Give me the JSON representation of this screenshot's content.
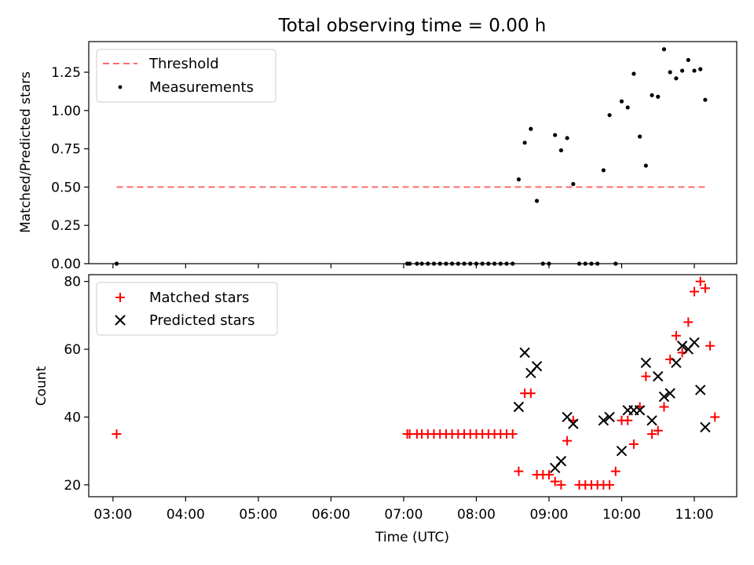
{
  "title": "Total observing time = 0.00 h",
  "xlabel": "Time (UTC)",
  "x_ticks": [
    "03:00",
    "04:00",
    "05:00",
    "06:00",
    "07:00",
    "08:00",
    "09:00",
    "10:00",
    "11:00"
  ],
  "colors": {
    "threshold": "#ff6b6b",
    "measurements": "#000000",
    "matched": "#ff0000",
    "predicted": "#000000"
  },
  "chart_data": [
    {
      "type": "scatter",
      "title": "Total observing time = 0.00 h",
      "ylabel": "Matched/Predicted stars",
      "xlim": [
        "02:40",
        "11:35"
      ],
      "ylim": [
        0,
        1.45
      ],
      "y_ticks": [
        "0.00",
        "0.25",
        "0.50",
        "0.75",
        "1.00",
        "1.25"
      ],
      "legend": "upper-left",
      "threshold": {
        "name": "Threshold",
        "y": 0.5,
        "x_range": [
          "03:03",
          "11:09"
        ]
      },
      "series": [
        {
          "name": "Measurements",
          "points": [
            [
              "03:03",
              0
            ],
            [
              "07:03",
              0
            ],
            [
              "07:05",
              0
            ],
            [
              "07:11",
              0
            ],
            [
              "07:15",
              0
            ],
            [
              "07:20",
              0
            ],
            [
              "07:25",
              0
            ],
            [
              "07:30",
              0
            ],
            [
              "07:35",
              0
            ],
            [
              "07:40",
              0
            ],
            [
              "07:45",
              0
            ],
            [
              "07:50",
              0
            ],
            [
              "07:55",
              0
            ],
            [
              "08:00",
              0
            ],
            [
              "08:05",
              0
            ],
            [
              "08:10",
              0
            ],
            [
              "08:15",
              0
            ],
            [
              "08:20",
              0
            ],
            [
              "08:25",
              0
            ],
            [
              "08:30",
              0
            ],
            [
              "08:35",
              0.55
            ],
            [
              "08:40",
              0.79
            ],
            [
              "08:45",
              0.88
            ],
            [
              "08:50",
              0.41
            ],
            [
              "08:55",
              0
            ],
            [
              "09:00",
              0
            ],
            [
              "09:05",
              0.84
            ],
            [
              "09:10",
              0.74
            ],
            [
              "09:15",
              0.82
            ],
            [
              "09:20",
              0.52
            ],
            [
              "09:25",
              0
            ],
            [
              "09:30",
              0
            ],
            [
              "09:35",
              0
            ],
            [
              "09:40",
              0
            ],
            [
              "09:45",
              0.61
            ],
            [
              "09:50",
              0.97
            ],
            [
              "09:55",
              0
            ],
            [
              "10:00",
              1.06
            ],
            [
              "10:05",
              1.02
            ],
            [
              "10:10",
              1.24
            ],
            [
              "10:15",
              0.83
            ],
            [
              "10:20",
              0.64
            ],
            [
              "10:25",
              1.1
            ],
            [
              "10:30",
              1.09
            ],
            [
              "10:35",
              1.4
            ],
            [
              "10:40",
              1.25
            ],
            [
              "10:45",
              1.21
            ],
            [
              "10:50",
              1.26
            ],
            [
              "10:55",
              1.33
            ],
            [
              "11:00",
              1.26
            ],
            [
              "11:05",
              1.27
            ],
            [
              "11:09",
              1.07
            ]
          ]
        }
      ]
    },
    {
      "type": "scatter",
      "ylabel": "Count",
      "xlabel": "Time (UTC)",
      "xlim": [
        "02:40",
        "11:35"
      ],
      "ylim": [
        16.5,
        82
      ],
      "y_ticks": [
        "20",
        "40",
        "60",
        "80"
      ],
      "legend": "upper-left",
      "series": [
        {
          "name": "Matched stars",
          "marker": "plus",
          "points": [
            [
              "03:03",
              35
            ],
            [
              "07:03",
              35
            ],
            [
              "07:05",
              35
            ],
            [
              "07:11",
              35
            ],
            [
              "07:15",
              35
            ],
            [
              "07:20",
              35
            ],
            [
              "07:25",
              35
            ],
            [
              "07:30",
              35
            ],
            [
              "07:35",
              35
            ],
            [
              "07:40",
              35
            ],
            [
              "07:45",
              35
            ],
            [
              "07:50",
              35
            ],
            [
              "07:55",
              35
            ],
            [
              "08:00",
              35
            ],
            [
              "08:05",
              35
            ],
            [
              "08:10",
              35
            ],
            [
              "08:15",
              35
            ],
            [
              "08:20",
              35
            ],
            [
              "08:25",
              35
            ],
            [
              "08:30",
              35
            ],
            [
              "08:35",
              24
            ],
            [
              "08:40",
              47
            ],
            [
              "08:45",
              47
            ],
            [
              "08:50",
              23
            ],
            [
              "08:55",
              23
            ],
            [
              "09:00",
              23
            ],
            [
              "09:05",
              21
            ],
            [
              "09:10",
              20
            ],
            [
              "09:15",
              33
            ],
            [
              "09:20",
              39
            ],
            [
              "09:25",
              20
            ],
            [
              "09:30",
              20
            ],
            [
              "09:35",
              20
            ],
            [
              "09:40",
              20
            ],
            [
              "09:45",
              20
            ],
            [
              "09:50",
              20
            ],
            [
              "09:55",
              24
            ],
            [
              "10:00",
              39
            ],
            [
              "10:05",
              39
            ],
            [
              "10:10",
              32
            ],
            [
              "10:15",
              43
            ],
            [
              "10:20",
              52
            ],
            [
              "10:25",
              35
            ],
            [
              "10:30",
              36
            ],
            [
              "10:35",
              43
            ],
            [
              "10:40",
              57
            ],
            [
              "10:45",
              64
            ],
            [
              "10:50",
              59
            ],
            [
              "10:55",
              68
            ],
            [
              "11:00",
              77
            ],
            [
              "11:05",
              80
            ],
            [
              "11:09",
              78
            ],
            [
              "11:13",
              61
            ],
            [
              "11:17",
              40
            ]
          ]
        },
        {
          "name": "Predicted stars",
          "marker": "x",
          "points": [
            [
              "08:35",
              43
            ],
            [
              "08:40",
              59
            ],
            [
              "08:45",
              53
            ],
            [
              "08:50",
              55
            ],
            [
              "09:05",
              25
            ],
            [
              "09:10",
              27
            ],
            [
              "09:15",
              40
            ],
            [
              "09:20",
              38
            ],
            [
              "09:45",
              39
            ],
            [
              "09:50",
              40
            ],
            [
              "10:00",
              30
            ],
            [
              "10:05",
              42
            ],
            [
              "10:10",
              42
            ],
            [
              "10:15",
              42
            ],
            [
              "10:20",
              56
            ],
            [
              "10:25",
              39
            ],
            [
              "10:30",
              52
            ],
            [
              "10:35",
              46
            ],
            [
              "10:40",
              47
            ],
            [
              "10:45",
              56
            ],
            [
              "10:50",
              61
            ],
            [
              "10:55",
              60
            ],
            [
              "11:00",
              62
            ],
            [
              "11:05",
              48
            ],
            [
              "11:09",
              37
            ]
          ]
        }
      ]
    }
  ]
}
